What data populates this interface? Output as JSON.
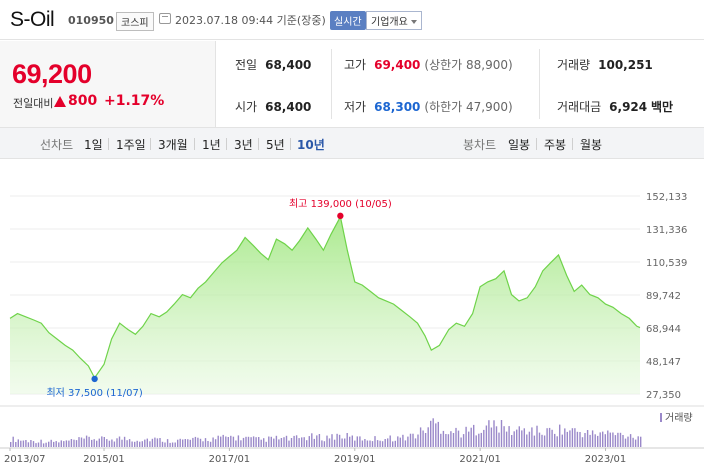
{
  "header": {
    "name": "S-Oil",
    "code": "010950",
    "market": "코스피",
    "time": "2023.07.18 09:44 기준(장중)",
    "realtime": "실시간",
    "corp_info": "기업개요"
  },
  "price": {
    "current": "69,200",
    "change_label": "전일대비",
    "change": "800",
    "rate": "+1.17%"
  },
  "stats": {
    "prev_label": "전일",
    "prev": "68,400",
    "open_label": "시가",
    "open": "68,400",
    "high_label": "고가",
    "high": "69,400",
    "upper_limit": "(상한가 88,900)",
    "low_label": "저가",
    "low": "68,300",
    "lower_limit": "(하한가 47,900)",
    "volume_label": "거래량",
    "volume": "100,251",
    "amount_label": "거래대금",
    "amount": "6,924",
    "amount_unit": "백만"
  },
  "period_bar": {
    "line_label": "선차트",
    "line_tabs": [
      "1일",
      "1주일",
      "3개월",
      "1년",
      "3년",
      "5년",
      "10년"
    ],
    "active_tab": "10년",
    "candle_label": "봉차트",
    "candle_tabs": [
      "일봉",
      "주봉",
      "월봉"
    ]
  },
  "colors": {
    "up": "#e4002b",
    "down": "#1c66d1",
    "line": "#6fd34a",
    "volume": "#9a88c9"
  },
  "chart_data": {
    "type": "area",
    "y_ticks": [
      "152,133",
      "131,336",
      "110,539",
      "89,742",
      "68,944",
      "48,147",
      "27,350"
    ],
    "ylim": [
      27350,
      152133
    ],
    "x_ticks": [
      "2013/07",
      "2015/01",
      "2017/01",
      "2019/01",
      "2021/01",
      "2023/01"
    ],
    "x_tick_pos": [
      2013.5,
      2015.0,
      2017.0,
      2019.0,
      2021.0,
      2023.0
    ],
    "xlim": [
      2013.5,
      2023.55
    ],
    "series": [
      {
        "x": [
          2013.5,
          2013.62,
          2013.75,
          2013.88,
          2014.0,
          2014.12,
          2014.25,
          2014.38,
          2014.5,
          2014.62,
          2014.75,
          2014.85,
          2015.0,
          2015.12,
          2015.25,
          2015.38,
          2015.5,
          2015.62,
          2015.75,
          2015.88,
          2016.0,
          2016.12,
          2016.25,
          2016.38,
          2016.5,
          2016.62,
          2016.75,
          2016.88,
          2017.0,
          2017.12,
          2017.25,
          2017.38,
          2017.5,
          2017.62,
          2017.75,
          2017.88,
          2018.0,
          2018.12,
          2018.25,
          2018.38,
          2018.5,
          2018.62,
          2018.77,
          2018.88,
          2019.0,
          2019.12,
          2019.25,
          2019.38,
          2019.5,
          2019.62,
          2019.75,
          2019.88,
          2020.0,
          2020.12,
          2020.22,
          2020.35,
          2020.5,
          2020.62,
          2020.75,
          2020.88,
          2021.0,
          2021.12,
          2021.25,
          2021.38,
          2021.5,
          2021.62,
          2021.75,
          2021.88,
          2022.0,
          2022.12,
          2022.25,
          2022.38,
          2022.5,
          2022.62,
          2022.75,
          2022.88,
          2023.0,
          2023.12,
          2023.25,
          2023.38,
          2023.5,
          2023.55
        ],
        "values": [
          75000,
          78000,
          76000,
          74000,
          72000,
          66000,
          62000,
          58000,
          55000,
          50000,
          45000,
          37500,
          46000,
          62000,
          72000,
          68000,
          65000,
          70000,
          78000,
          76000,
          79000,
          84000,
          90000,
          88000,
          94000,
          98000,
          104000,
          110000,
          114000,
          118000,
          126000,
          121000,
          116000,
          112000,
          125000,
          122000,
          118000,
          124000,
          132000,
          125000,
          118000,
          128000,
          139000,
          118000,
          98000,
          96000,
          92000,
          88000,
          86000,
          84000,
          80000,
          76000,
          72000,
          64000,
          55000,
          58000,
          68000,
          72000,
          70000,
          78000,
          95000,
          98000,
          100000,
          105000,
          90000,
          86000,
          88000,
          95000,
          105000,
          110000,
          115000,
          102000,
          92000,
          96000,
          90000,
          88000,
          84000,
          82000,
          78000,
          75000,
          70000,
          69200
        ]
      }
    ],
    "volume": {
      "x": [
        2013.5,
        2013.75,
        2014.0,
        2014.25,
        2014.5,
        2014.75,
        2015.0,
        2015.25,
        2015.5,
        2015.75,
        2016.0,
        2016.25,
        2016.5,
        2016.75,
        2017.0,
        2017.25,
        2017.5,
        2017.75,
        2018.0,
        2018.25,
        2018.5,
        2018.75,
        2019.0,
        2019.25,
        2019.5,
        2019.75,
        2020.0,
        2020.25,
        2020.5,
        2020.75,
        2021.0,
        2021.25,
        2021.5,
        2021.75,
        2022.0,
        2022.25,
        2022.5,
        2022.75,
        2023.0,
        2023.25,
        2023.5
      ],
      "values": [
        0.28,
        0.22,
        0.2,
        0.18,
        0.22,
        0.3,
        0.26,
        0.3,
        0.25,
        0.28,
        0.22,
        0.24,
        0.26,
        0.28,
        0.35,
        0.3,
        0.25,
        0.3,
        0.28,
        0.35,
        0.32,
        0.4,
        0.3,
        0.28,
        0.3,
        0.32,
        0.45,
        0.85,
        0.55,
        0.5,
        0.7,
        0.75,
        0.55,
        0.6,
        0.5,
        0.6,
        0.55,
        0.45,
        0.48,
        0.42,
        0.38
      ]
    },
    "legend_volume": "거래량",
    "max_label": "최고 139,000 (10/05)",
    "max_point": [
      2018.77,
      139000
    ],
    "min_label": "최저 37,500 (11/07)",
    "min_point": [
      2014.85,
      37500
    ]
  }
}
